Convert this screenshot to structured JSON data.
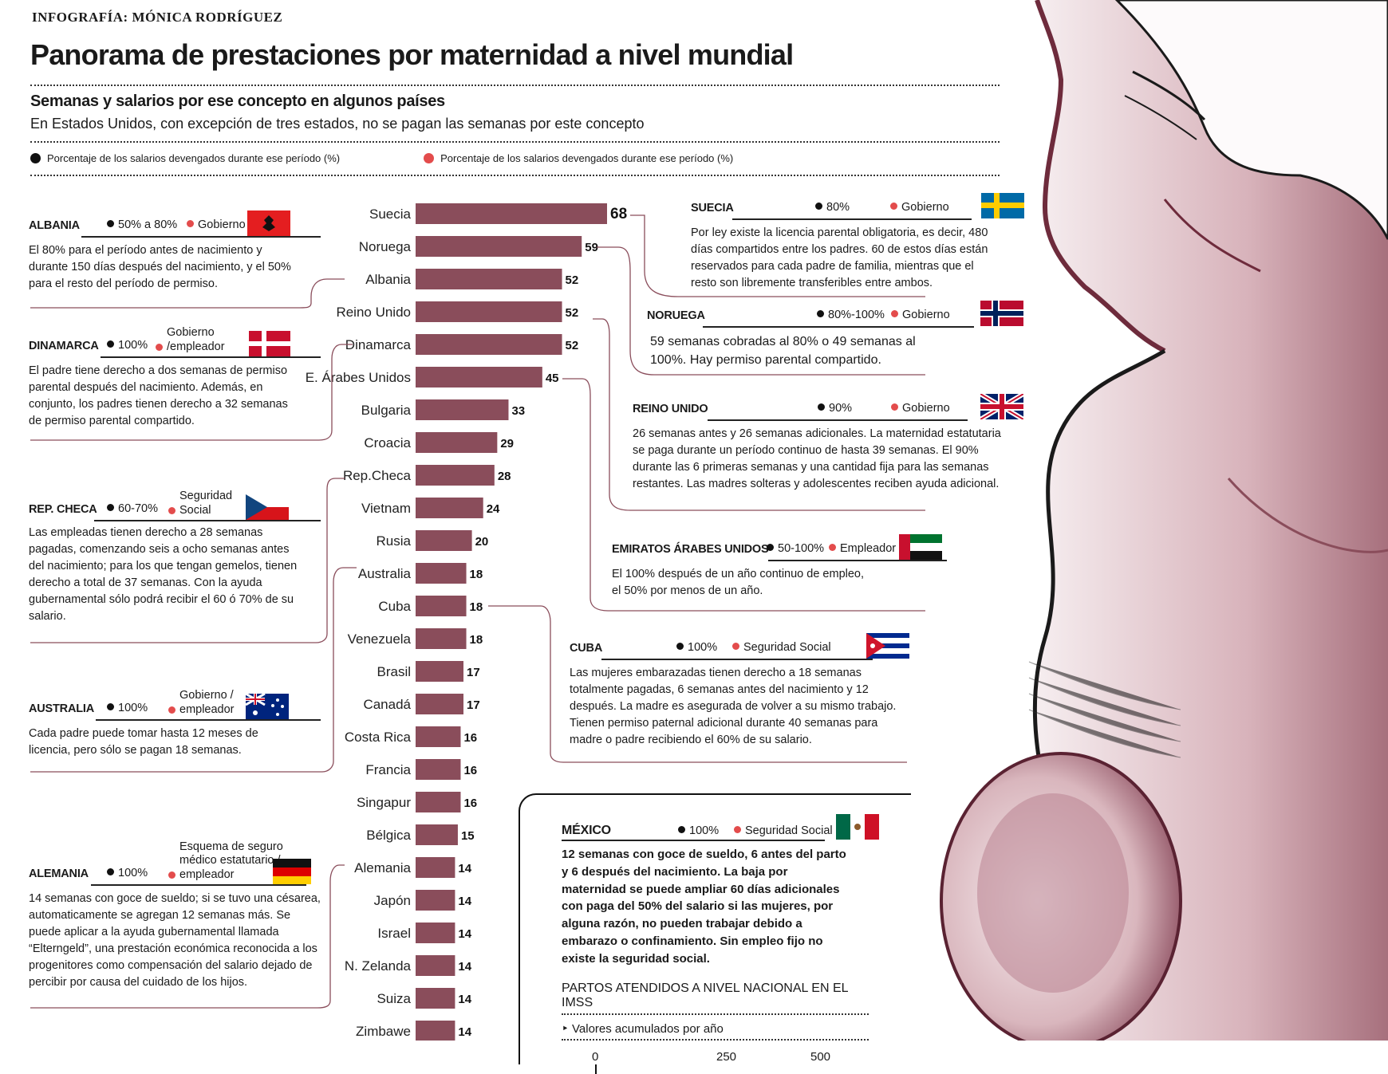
{
  "credit": "INFOGRAFÍA:  MÓNICA RODRÍGUEZ",
  "title": "Panorama de prestaciones por maternidad a nivel mundial",
  "subtitle": "Semanas y salarios por ese concepto en algunos países",
  "subnote": "En Estados Unidos, con excepción de tres estados, no se pagan las semanas por este concepto",
  "legend": {
    "black": "Porcentaje de los salarios devengados durante ese período (%)",
    "red": "Porcentaje de los salarios devengados durante ese período (%)"
  },
  "colors": {
    "bar": "#8a4d5b",
    "red_dot": "#e34c4c",
    "line": "#8a4d5b",
    "figure": "#d9b8bf"
  },
  "chart_data": {
    "type": "bar",
    "orientation": "horizontal",
    "categories": [
      "Suecia",
      "Noruega",
      "Albania",
      "Reino Unido",
      "Dinamarca",
      "E. Árabes Unidos",
      "Bulgaria",
      "Croacia",
      "Rep.Checa",
      "Vietnam",
      "Rusia",
      "Australia",
      "Cuba",
      "Venezuela",
      "Brasil",
      "Canadá",
      "Costa Rica",
      "Francia",
      "Singapur",
      "Bélgica",
      "Alemania",
      "Japón",
      "Israel",
      "N. Zelanda",
      "Suiza",
      "Zimbawe"
    ],
    "values": [
      68,
      59,
      52,
      52,
      52,
      45,
      33,
      29,
      28,
      24,
      20,
      18,
      18,
      18,
      17,
      17,
      16,
      16,
      16,
      15,
      14,
      14,
      14,
      14,
      14,
      14
    ],
    "data_labels": [
      "68",
      "59",
      "52",
      "52",
      "52",
      "45",
      "33",
      "29",
      "28",
      "24",
      "20",
      "18",
      "18",
      "18",
      "17",
      "17",
      "16",
      "16",
      "16",
      "15",
      "14",
      "14",
      "14",
      "14",
      "14",
      "14"
    ],
    "xlim": [
      0,
      68
    ]
  },
  "countries": {
    "albania": {
      "name": "ALBANIA",
      "pct": "50% a 80%",
      "payer": "Gobierno",
      "text": "El 80% para el período antes de nacimiento y durante 150 días después del nacimiento, y el 50% para el resto del período de permiso.",
      "flag": "albania-flag"
    },
    "dinamarca": {
      "name": "DINAMARCA",
      "pct": "100%",
      "payer": "Gobierno /empleador",
      "text": "El padre tiene derecho a dos semanas de permiso parental después del nacimiento. Además, en conjunto, los padres tienen derecho a 32 semanas de permiso parental compartido.",
      "flag": "denmark-flag"
    },
    "repcheca": {
      "name": "REP. CHECA",
      "pct": "60-70%",
      "payer": "Seguridad Social",
      "text": "Las empleadas tienen derecho a 28 semanas pagadas, comenzando seis a ocho semanas antes del nacimiento; para los que tengan gemelos, tienen derecho a total de 37 semanas. Con la ayuda gubernamental sólo podrá recibir el 60 ó 70% de su salario.",
      "flag": "czech-flag"
    },
    "australia": {
      "name": "AUSTRALIA",
      "pct": "100%",
      "payer": "Gobierno / empleador",
      "text": "Cada padre puede tomar hasta 12 meses de licencia, pero sólo se pagan 18 semanas.",
      "flag": "australia-flag"
    },
    "alemania": {
      "name": "ALEMANIA",
      "pct": "100%",
      "payer": "Esquema de seguro médico estatutario / empleador",
      "text": "14 semanas con goce de sueldo; si se tuvo una césarea, automaticamente se agregan 12 semanas más. Se puede aplicar a la ayuda gubernamental llamada “Elterngeld”, una prestación económica reconocida a los progenitores como compensación del salario dejado de percibir por causa del cuidado de los hijos.",
      "flag": "germany-flag"
    },
    "suecia": {
      "name": "SUECIA",
      "pct": "80%",
      "payer": "Gobierno",
      "text": "Por ley existe la licencia parental obligatoria, es decir, 480 días compartidos entre los padres. 60 de estos días están reservados para cada padre de familia, mientras que el resto son libremente transferibles entre ambos.",
      "flag": "sweden-flag"
    },
    "noruega": {
      "name": "NORUEGA",
      "pct": "80%-100%",
      "payer": "Gobierno",
      "text": "59 semanas cobradas al 80% o 49 semanas al 100%. Hay permiso parental compartido.",
      "flag": "norway-flag"
    },
    "reinounido": {
      "name": "REINO UNIDO",
      "pct": "90%",
      "payer": "Gobierno",
      "text": "26 semanas antes y 26 semanas adicionales. La maternidad estatutaria se paga durante un período continuo de hasta 39 semanas. El 90% durante las 6 primeras semanas y una cantidad fija para las semanas restantes. Las madres solteras y adolescentes reciben ayuda adicional.",
      "flag": "uk-flag"
    },
    "emiratos": {
      "name": "EMIRATOS ÁRABES UNIDOS",
      "pct": "50-100%",
      "payer": "Empleador",
      "text": "El 100% después de un año continuo de empleo, el 50% por menos de un año.",
      "flag": "uae-flag"
    },
    "cuba": {
      "name": "CUBA",
      "pct": "100%",
      "payer": "Seguridad Social",
      "text": "Las mujeres embarazadas tienen derecho a 18 semanas totalmente pagadas, 6 semanas antes del nacimiento y 12 después. La madre es asegurada de volver a su mismo trabajo. Tienen permiso paternal adicional durante 40 semanas para madre o padre recibiendo el 60% de su salario.",
      "flag": "cuba-flag"
    }
  },
  "mexico": {
    "name": "MÉXICO",
    "pct": "100%",
    "payer": "Seguridad Social",
    "text": "12 semanas con goce de sueldo, 6 antes del parto y 6 después del nacimiento. La baja por maternidad se puede ampliar 60 días adicionales con paga del 50% del salario si las mujeres, por alguna razón, no pueden trabajar debido a embarazo o confinamiento. Sin empleo fijo no existe la seguridad social.",
    "flag": "mexico-flag",
    "imss_title": "PARTOS ATENDIDOS A NIVEL NACIONAL EN EL IMSS",
    "imss_sub": "Valores acumulados por año",
    "axis_ticks": [
      "0",
      "250",
      "500"
    ]
  }
}
